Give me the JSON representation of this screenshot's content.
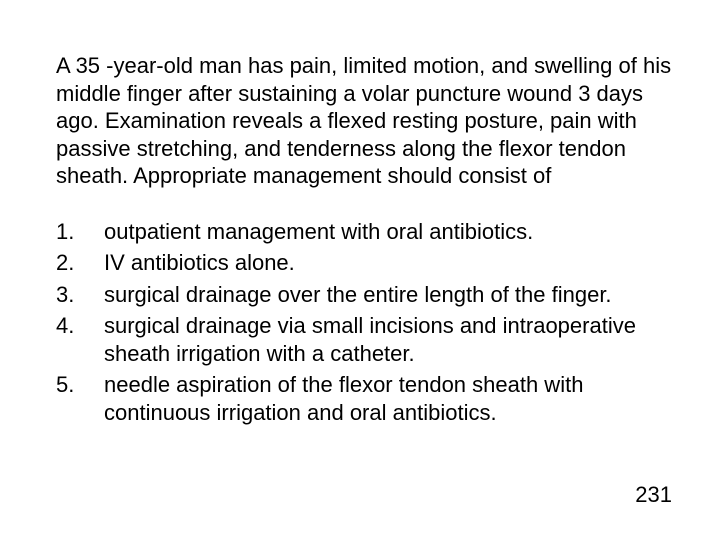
{
  "question": "A 35 -year-old man has pain, limited motion, and swelling of his middle finger after sustaining a volar puncture wound 3 days ago. Examination reveals a flexed resting posture, pain with passive stretching, and tenderness along the flexor tendon sheath. Appropriate management should consist of",
  "options": [
    {
      "num": "1.",
      "text": "outpatient management with oral antibiotics."
    },
    {
      "num": "2.",
      "text": "IV antibiotics alone."
    },
    {
      "num": "3.",
      "text": "surgical drainage over the entire length of the finger."
    },
    {
      "num": "4.",
      "text": "surgical drainage via small incisions and intraoperative sheath irrigation with a catheter."
    },
    {
      "num": "5.",
      "text": "needle aspiration of the flexor tendon sheath with continuous irrigation and oral antibiotics."
    }
  ],
  "page_number": "231",
  "colors": {
    "background": "#ffffff",
    "text": "#000000"
  },
  "typography": {
    "font_family": "Arial",
    "font_size_pt": 16,
    "line_height": 1.25
  }
}
